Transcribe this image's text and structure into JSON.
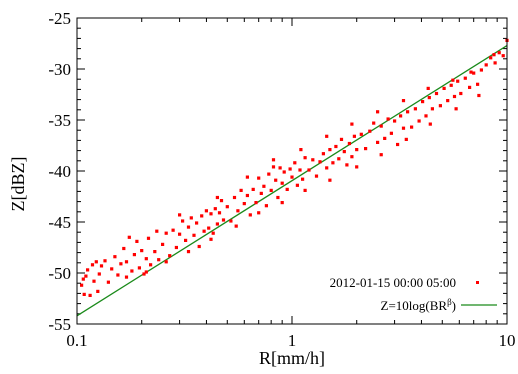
{
  "chart_data": {
    "type": "scatter",
    "title": "",
    "xlabel": "R[mm/h]",
    "ylabel": "Z[dBZ]",
    "xscale": "log",
    "xlim": [
      0.1,
      10
    ],
    "ylim": [
      -55,
      -25
    ],
    "xticks": [
      0.1,
      1,
      10
    ],
    "xtick_labels": [
      "0.1",
      "1",
      "10"
    ],
    "yticks": [
      -55,
      -50,
      -45,
      -40,
      -35,
      -30,
      -25
    ],
    "ytick_labels": [
      "-55",
      "-50",
      "-45",
      "-40",
      "-35",
      "-30",
      "-25"
    ],
    "grid": false,
    "legend_position": "bottom-right",
    "series": [
      {
        "name": "2012-01-15 00:00    05:00",
        "kind": "scatter",
        "color": "#ff0000",
        "points": [
          [
            0.105,
            -51.2
          ],
          [
            0.107,
            -50.6
          ],
          [
            0.108,
            -52.1
          ],
          [
            0.11,
            -50.3
          ],
          [
            0.112,
            -49.7
          ],
          [
            0.115,
            -52.2
          ],
          [
            0.118,
            -49.2
          ],
          [
            0.12,
            -50.8
          ],
          [
            0.123,
            -48.9
          ],
          [
            0.127,
            -50.1
          ],
          [
            0.13,
            -49.3
          ],
          [
            0.135,
            -48.8
          ],
          [
            0.14,
            -50.9
          ],
          [
            0.145,
            -49.6
          ],
          [
            0.15,
            -48.4
          ],
          [
            0.155,
            -50.2
          ],
          [
            0.16,
            -49.1
          ],
          [
            0.165,
            -47.6
          ],
          [
            0.17,
            -48.9
          ],
          [
            0.175,
            -46.5
          ],
          [
            0.18,
            -49.8
          ],
          [
            0.185,
            -48.2
          ],
          [
            0.19,
            -46.9
          ],
          [
            0.195,
            -49.5
          ],
          [
            0.2,
            -47.8
          ],
          [
            0.205,
            -50.1
          ],
          [
            0.21,
            -48.6
          ],
          [
            0.215,
            -46.6
          ],
          [
            0.22,
            -49.2
          ],
          [
            0.23,
            -47.9
          ],
          [
            0.235,
            -45.9
          ],
          [
            0.24,
            -48.7
          ],
          [
            0.25,
            -47.2
          ],
          [
            0.26,
            -46.1
          ],
          [
            0.27,
            -48.3
          ],
          [
            0.28,
            -45.8
          ],
          [
            0.29,
            -47.5
          ],
          [
            0.3,
            -46.2
          ],
          [
            0.31,
            -44.9
          ],
          [
            0.32,
            -46.8
          ],
          [
            0.33,
            -45.5
          ],
          [
            0.34,
            -44.6
          ],
          [
            0.35,
            -46.3
          ],
          [
            0.36,
            -45.1
          ],
          [
            0.37,
            -47.4
          ],
          [
            0.38,
            -44.4
          ],
          [
            0.39,
            -45.9
          ],
          [
            0.4,
            -43.9
          ],
          [
            0.41,
            -45.6
          ],
          [
            0.42,
            -44.2
          ],
          [
            0.43,
            -46.1
          ],
          [
            0.44,
            -43.7
          ],
          [
            0.45,
            -45.2
          ],
          [
            0.46,
            -44.1
          ],
          [
            0.47,
            -42.9
          ],
          [
            0.48,
            -44.8
          ],
          [
            0.5,
            -43.5
          ],
          [
            0.52,
            -44.9
          ],
          [
            0.54,
            -42.6
          ],
          [
            0.56,
            -43.9
          ],
          [
            0.58,
            -41.9
          ],
          [
            0.6,
            -43.2
          ],
          [
            0.62,
            -42.4
          ],
          [
            0.64,
            -44.3
          ],
          [
            0.66,
            -41.8
          ],
          [
            0.68,
            -43.1
          ],
          [
            0.7,
            -40.7
          ],
          [
            0.72,
            -42.2
          ],
          [
            0.74,
            -41.5
          ],
          [
            0.76,
            -43.4
          ],
          [
            0.78,
            -40.3
          ],
          [
            0.8,
            -41.9
          ],
          [
            0.82,
            -39.6
          ],
          [
            0.84,
            -40.9
          ],
          [
            0.86,
            -42.6
          ],
          [
            0.88,
            -39.7
          ],
          [
            0.9,
            -41.2
          ],
          [
            0.92,
            -40.1
          ],
          [
            0.95,
            -41.8
          ],
          [
            0.98,
            -39.8
          ],
          [
            1.0,
            -40.6
          ],
          [
            1.03,
            -39.2
          ],
          [
            1.06,
            -41.4
          ],
          [
            1.09,
            -39.9
          ],
          [
            1.12,
            -40.8
          ],
          [
            1.15,
            -38.7
          ],
          [
            1.2,
            -39.9
          ],
          [
            1.25,
            -38.9
          ],
          [
            1.3,
            -40.5
          ],
          [
            1.35,
            -39.1
          ],
          [
            1.4,
            -38.3
          ],
          [
            1.45,
            -39.7
          ],
          [
            1.5,
            -37.9
          ],
          [
            1.55,
            -39.2
          ],
          [
            1.6,
            -37.6
          ],
          [
            1.65,
            -38.8
          ],
          [
            1.7,
            -36.9
          ],
          [
            1.75,
            -38.1
          ],
          [
            1.8,
            -39.4
          ],
          [
            1.85,
            -37.3
          ],
          [
            1.9,
            -38.6
          ],
          [
            1.95,
            -36.6
          ],
          [
            2.0,
            -37.9
          ],
          [
            2.1,
            -36.4
          ],
          [
            2.2,
            -37.8
          ],
          [
            2.3,
            -36.1
          ],
          [
            2.4,
            -35.3
          ],
          [
            2.5,
            -37.2
          ],
          [
            2.6,
            -35.6
          ],
          [
            2.7,
            -36.8
          ],
          [
            2.8,
            -34.9
          ],
          [
            2.9,
            -36.3
          ],
          [
            3.0,
            -35.1
          ],
          [
            3.1,
            -37.4
          ],
          [
            3.2,
            -34.6
          ],
          [
            3.3,
            -35.8
          ],
          [
            3.45,
            -34.2
          ],
          [
            3.6,
            -35.7
          ],
          [
            3.75,
            -33.9
          ],
          [
            3.9,
            -35.1
          ],
          [
            4.05,
            -33.2
          ],
          [
            4.2,
            -34.6
          ],
          [
            4.35,
            -32.8
          ],
          [
            4.5,
            -33.9
          ],
          [
            4.7,
            -32.4
          ],
          [
            4.9,
            -33.6
          ],
          [
            5.1,
            -31.9
          ],
          [
            5.3,
            -33.1
          ],
          [
            5.5,
            -31.6
          ],
          [
            5.7,
            -32.7
          ],
          [
            5.9,
            -31.2
          ],
          [
            6.1,
            -32.4
          ],
          [
            6.4,
            -30.9
          ],
          [
            6.7,
            -31.8
          ],
          [
            7.0,
            -30.4
          ],
          [
            7.3,
            -31.5
          ],
          [
            7.6,
            -30.1
          ],
          [
            8.0,
            -29.6
          ],
          [
            8.4,
            -28.9
          ],
          [
            8.8,
            -29.4
          ],
          [
            9.2,
            -28.4
          ],
          [
            9.6,
            -28.7
          ],
          [
            10.0,
            -27.2
          ],
          [
            0.125,
            -51.8
          ],
          [
            0.17,
            -50.4
          ],
          [
            0.21,
            -49.9
          ],
          [
            0.26,
            -48.9
          ],
          [
            0.33,
            -47.9
          ],
          [
            0.42,
            -46.7
          ],
          [
            0.55,
            -45.4
          ],
          [
            0.7,
            -44.1
          ],
          [
            0.9,
            -43.1
          ],
          [
            1.15,
            -41.9
          ],
          [
            1.5,
            -40.9
          ],
          [
            2.0,
            -39.6
          ],
          [
            2.6,
            -38.4
          ],
          [
            3.4,
            -36.9
          ],
          [
            4.4,
            -35.4
          ],
          [
            5.8,
            -33.9
          ],
          [
            7.4,
            -32.6
          ],
          [
            0.3,
            -44.3
          ],
          [
            0.45,
            -42.6
          ],
          [
            0.62,
            -40.6
          ],
          [
            0.82,
            -38.9
          ],
          [
            1.1,
            -37.9
          ],
          [
            1.45,
            -36.6
          ],
          [
            1.9,
            -35.4
          ],
          [
            2.5,
            -34.2
          ],
          [
            3.3,
            -33.1
          ],
          [
            4.3,
            -31.9
          ],
          [
            5.6,
            -31.1
          ],
          [
            6.8,
            -30.3
          ],
          [
            8.7,
            -28.6
          ]
        ]
      },
      {
        "name": "Z=10log(BR^β)",
        "kind": "line",
        "color": "#1a8a1a",
        "x": [
          0.1,
          10
        ],
        "y": [
          -54.2,
          -27.7
        ]
      }
    ],
    "legend": [
      {
        "text": "2012-01-15 00:00    05:00",
        "marker": "point",
        "color": "#ff0000"
      },
      {
        "text_base": "Z=10log(BR",
        "text_sup": "β",
        "text_close": ")",
        "marker": "line",
        "color": "#1a8a1a"
      }
    ]
  }
}
